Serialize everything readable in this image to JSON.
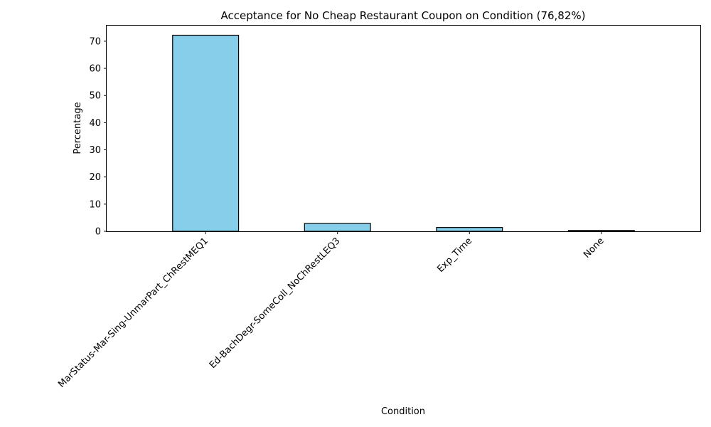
{
  "chart_data": {
    "type": "bar",
    "title": "Acceptance for No Cheap Restaurant Coupon on Condition (76,82%)",
    "xlabel": "Condition",
    "ylabel": "Percentage",
    "categories": [
      "MarStatus-Mar-Sing-UnmarPart_ChRestMEQ1",
      "Ed-BachDegr-SomeColl_NoChRestLEQ3",
      "Exp_Time",
      "None"
    ],
    "values": [
      72.2,
      2.9,
      1.4,
      0.3
    ],
    "ylim": [
      0,
      76
    ],
    "yticks": [
      0,
      10,
      20,
      30,
      40,
      50,
      60,
      70
    ],
    "grid": false,
    "legend": "none",
    "colors": {
      "bar_fill": "#87CEEB",
      "bar_edge": "#000000"
    }
  }
}
